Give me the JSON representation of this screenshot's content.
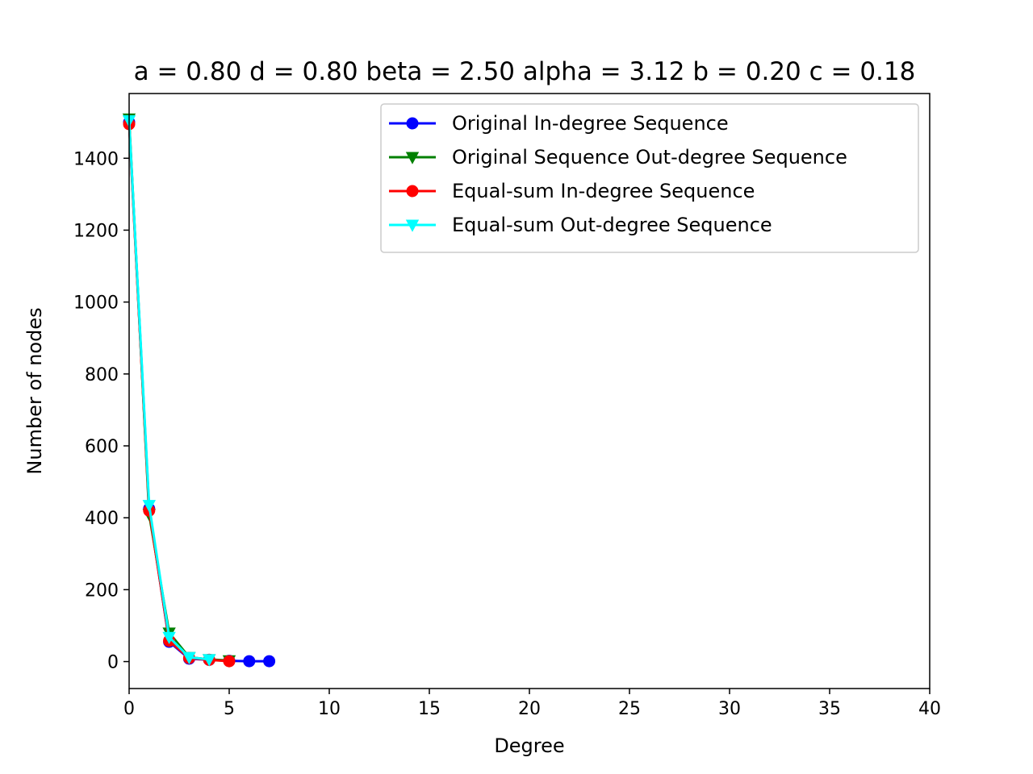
{
  "chart_data": {
    "type": "line",
    "title": "a = 0.80 d = 0.80 beta = 2.50 alpha = 3.12 b = 0.20 c = 0.18",
    "xlabel": "Degree",
    "ylabel": "Number of nodes",
    "xlim": [
      0,
      40
    ],
    "ylim": [
      -75,
      1580
    ],
    "xticks": [
      0,
      5,
      10,
      15,
      20,
      25,
      30,
      35,
      40
    ],
    "yticks": [
      0,
      200,
      400,
      600,
      800,
      1000,
      1200,
      1400
    ],
    "grid": false,
    "legend_position": "top-right",
    "series": [
      {
        "name": "Original In-degree Sequence",
        "color": "#0000ff",
        "marker": "circle",
        "x": [
          0,
          1,
          2,
          3,
          4,
          5,
          6,
          7
        ],
        "y": [
          1500,
          425,
          55,
          8,
          5,
          2,
          1,
          1
        ]
      },
      {
        "name": "Original Sequence Out-degree Sequence",
        "color": "#008000",
        "marker": "triangle-down",
        "x": [
          0,
          1,
          2,
          3,
          4,
          5
        ],
        "y": [
          1510,
          410,
          80,
          12,
          6,
          3
        ]
      },
      {
        "name": "Equal-sum In-degree Sequence",
        "color": "#ff0000",
        "marker": "circle",
        "x": [
          0,
          1,
          2,
          3,
          4,
          5
        ],
        "y": [
          1495,
          420,
          58,
          10,
          5,
          1
        ]
      },
      {
        "name": "Equal-sum Out-degree Sequence",
        "color": "#00ffff",
        "marker": "triangle-down",
        "x": [
          0,
          1,
          2,
          3,
          4
        ],
        "y": [
          1505,
          435,
          68,
          12,
          6
        ]
      }
    ]
  }
}
